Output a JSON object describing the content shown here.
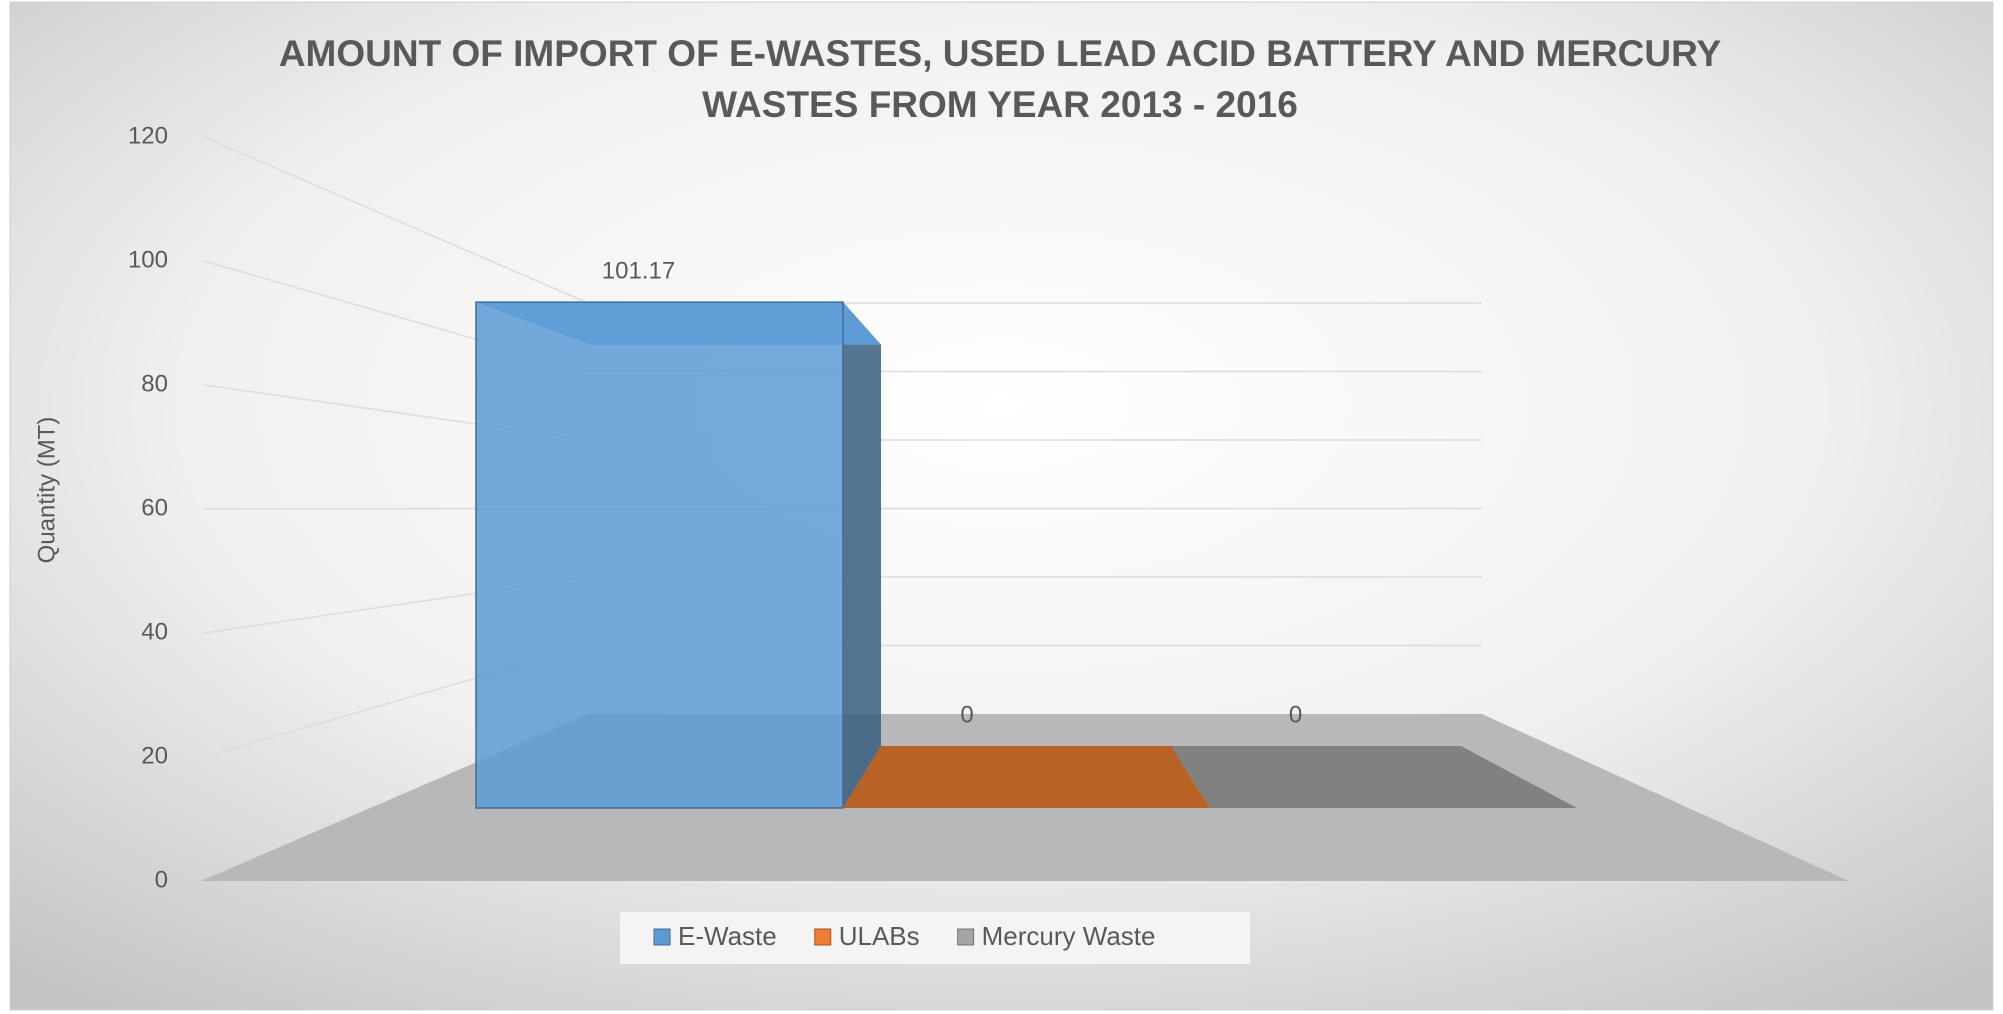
{
  "chart_data": {
    "type": "bar3d",
    "title": "AMOUNT OF IMPORT OF E-WASTES, USED LEAD ACID BATTERY AND MERCURY WASTES FROM YEAR 2013 - 2016",
    "y_label": "Quantity (MT)",
    "series": [
      {
        "name": "E-Waste",
        "color": "#5b9bd5",
        "values": [
          101.17
        ]
      },
      {
        "name": "ULABs",
        "color": "#ed7d31",
        "values": [
          0
        ]
      },
      {
        "name": "Mercury Waste",
        "color": "#a5a5a5",
        "values": [
          0
        ]
      }
    ],
    "ylim": [
      0,
      120
    ],
    "yticks": [
      0,
      20,
      40,
      60,
      80,
      100,
      120
    ],
    "grid": true,
    "legend": "bottom"
  }
}
